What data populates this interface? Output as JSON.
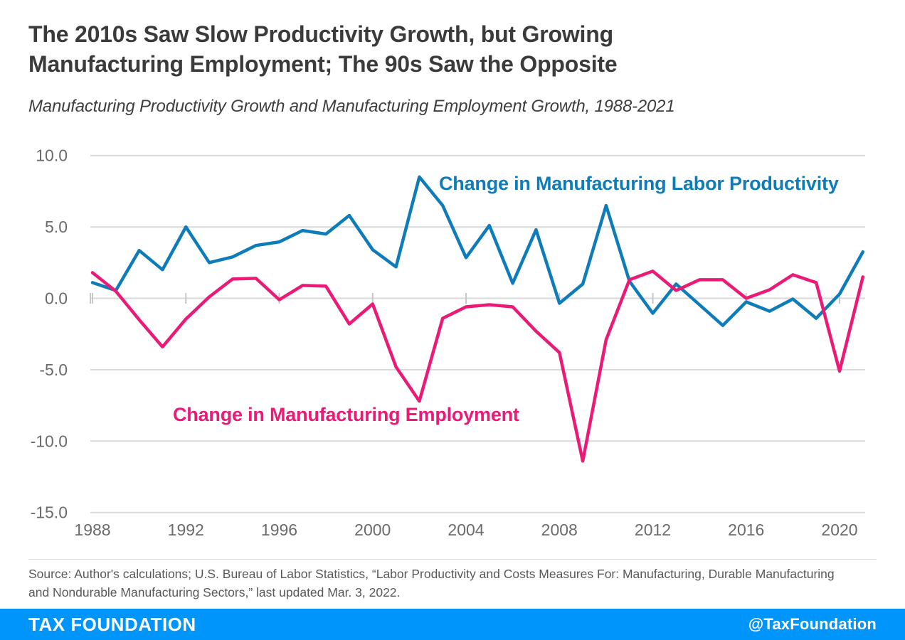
{
  "header": {
    "title_line1": "The 2010s Saw Slow Productivity Growth, but Growing",
    "title_line2": "Manufacturing Employment; The 90s Saw the Opposite",
    "subtitle": "Manufacturing Productivity Growth and Manufacturing Employment Growth, 1988-2021"
  },
  "chart_data": {
    "type": "line",
    "title": "Manufacturing Productivity Growth and Manufacturing Employment Growth, 1988-2021",
    "xlabel": "",
    "ylabel": "",
    "x": [
      1988,
      1989,
      1990,
      1991,
      1992,
      1993,
      1994,
      1995,
      1996,
      1997,
      1998,
      1999,
      2000,
      2001,
      2002,
      2003,
      2004,
      2005,
      2006,
      2007,
      2008,
      2009,
      2010,
      2011,
      2012,
      2013,
      2014,
      2015,
      2016,
      2017,
      2018,
      2019,
      2020,
      2021
    ],
    "series": [
      {
        "id": "productivity",
        "name": "Change in Manufacturing Labor Productivity",
        "color": "#0f7cba",
        "values": [
          1.1,
          0.55,
          3.35,
          2.0,
          5.0,
          2.5,
          2.9,
          3.7,
          3.95,
          4.75,
          4.5,
          5.8,
          3.4,
          2.2,
          8.5,
          6.5,
          2.85,
          5.1,
          1.05,
          4.8,
          -0.35,
          1.0,
          6.5,
          1.2,
          -1.05,
          1.0,
          -0.45,
          -1.9,
          -0.25,
          -0.9,
          -0.05,
          -1.4,
          0.3,
          3.25
        ]
      },
      {
        "id": "employment",
        "name": "Change in Manufacturing Employment",
        "color": "#ec1a77",
        "values": [
          1.8,
          0.5,
          -1.5,
          -3.4,
          -1.45,
          0.1,
          1.35,
          1.4,
          -0.1,
          0.9,
          0.85,
          -1.8,
          -0.4,
          -4.8,
          -7.2,
          -1.4,
          -0.6,
          -0.45,
          -0.6,
          -2.3,
          -3.8,
          -11.4,
          -2.9,
          1.3,
          1.9,
          0.55,
          1.3,
          1.3,
          0.0,
          0.6,
          1.65,
          1.1,
          -5.1,
          1.5
        ]
      }
    ],
    "ylim": [
      -15,
      10
    ],
    "yticks": [
      10,
      5,
      0,
      -5,
      -10,
      -15
    ],
    "ytick_labels": [
      "10.0",
      "5.0",
      "0.0",
      "-5.0",
      "-10.0",
      "-15.0"
    ],
    "xticks": [
      1988,
      1992,
      1996,
      2000,
      2004,
      2008,
      2012,
      2016,
      2020
    ],
    "grid": "horizontal",
    "legend_position": "inline-labels"
  },
  "annotations": {
    "productivity_label": "Change in Manufacturing Labor Productivity",
    "employment_label": "Change in Manufacturing Employment"
  },
  "source": {
    "line1": "Source: Author's calculations; U.S. Bureau of Labor Statistics, “Labor Productivity and Costs Measures For: Manufacturing, Durable Manufacturing",
    "line2": "and Nondurable Manufacturing Sectors,” last updated Mar. 3, 2022."
  },
  "footer": {
    "brand": "TAX FOUNDATION",
    "handle": "@TaxFoundation",
    "bar_color": "#0095fb"
  },
  "colors": {
    "title_text": "#3b3b3b",
    "axis_text": "#6b6b6b",
    "gridline": "#d9d9d9",
    "source_text": "#58595b",
    "productivity_blue": "#0f7cba",
    "employment_pink": "#ec1a77",
    "footer_blue": "#0095fb"
  }
}
